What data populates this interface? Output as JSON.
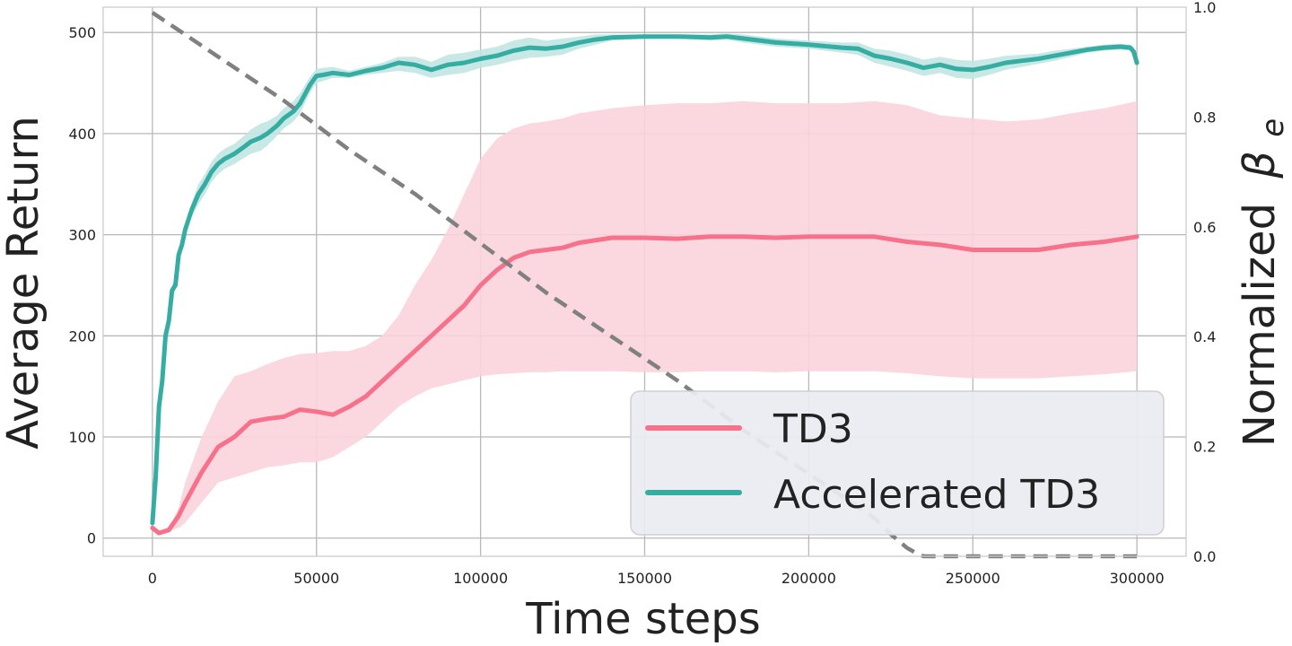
{
  "chart_data": {
    "type": "line",
    "xlabel": "Time steps",
    "ylabel": "Average Return",
    "y2label": "Normalized",
    "y2label_symbol": "β",
    "y2label_subscript": "e",
    "xlim": [
      -15000,
      315000
    ],
    "ylim": [
      -18,
      525
    ],
    "y2lim": [
      0.0,
      1.0
    ],
    "xticks": [
      0,
      50000,
      100000,
      150000,
      200000,
      250000,
      300000
    ],
    "xtick_labels": [
      "0",
      "50000",
      "100000",
      "150000",
      "200000",
      "250000",
      "300000"
    ],
    "yticks": [
      0,
      100,
      200,
      300,
      400,
      500
    ],
    "ytick_labels": [
      "0",
      "100",
      "200",
      "300",
      "400",
      "500"
    ],
    "y2ticks": [
      0.0,
      0.2,
      0.4,
      0.6,
      0.8,
      1.0
    ],
    "y2tick_labels": [
      "0.0",
      "0.2",
      "0.4",
      "0.6",
      "0.8",
      "1.0"
    ],
    "grid": true,
    "legend_position": "bottom-right",
    "series": [
      {
        "name": "TD3",
        "color": "#f7718a",
        "band_color": "#fbd3dc",
        "x": [
          0,
          2000,
          5000,
          8000,
          10000,
          15000,
          20000,
          25000,
          30000,
          35000,
          40000,
          45000,
          50000,
          55000,
          60000,
          65000,
          70000,
          75000,
          80000,
          85000,
          90000,
          95000,
          100000,
          105000,
          110000,
          115000,
          120000,
          125000,
          130000,
          140000,
          150000,
          160000,
          170000,
          180000,
          190000,
          200000,
          210000,
          220000,
          230000,
          240000,
          250000,
          260000,
          270000,
          280000,
          290000,
          300000
        ],
        "mean": [
          10,
          5,
          8,
          22,
          35,
          65,
          90,
          100,
          115,
          118,
          120,
          127,
          125,
          122,
          130,
          140,
          155,
          170,
          185,
          200,
          215,
          230,
          250,
          265,
          277,
          283,
          285,
          287,
          292,
          297,
          297,
          296,
          298,
          298,
          297,
          298,
          298,
          298,
          293,
          290,
          285,
          285,
          285,
          290,
          293,
          298
        ],
        "lower": [
          10,
          5,
          7,
          10,
          15,
          35,
          55,
          60,
          65,
          70,
          72,
          75,
          75,
          80,
          90,
          100,
          115,
          130,
          140,
          148,
          152,
          156,
          160,
          162,
          163,
          164,
          164,
          165,
          165,
          165,
          164,
          164,
          165,
          165,
          164,
          165,
          165,
          165,
          163,
          160,
          158,
          158,
          158,
          160,
          162,
          165
        ],
        "upper": [
          10,
          5,
          9,
          30,
          55,
          100,
          135,
          160,
          165,
          172,
          178,
          182,
          183,
          185,
          185,
          190,
          200,
          220,
          250,
          275,
          305,
          340,
          375,
          395,
          405,
          410,
          412,
          415,
          420,
          425,
          428,
          430,
          430,
          432,
          430,
          430,
          430,
          432,
          428,
          418,
          415,
          412,
          414,
          420,
          425,
          432
        ]
      },
      {
        "name": "Accelerated TD3",
        "color": "#35ada3",
        "band_color": "#c2e6e3",
        "x": [
          0,
          1000,
          2000,
          3000,
          4000,
          5000,
          6000,
          7000,
          8000,
          9000,
          10000,
          12000,
          14000,
          16000,
          18000,
          20000,
          22000,
          25000,
          28000,
          30000,
          33000,
          35000,
          38000,
          40000,
          43000,
          45000,
          48000,
          50000,
          52000,
          55000,
          60000,
          65000,
          70000,
          75000,
          80000,
          85000,
          90000,
          95000,
          100000,
          105000,
          110000,
          115000,
          120000,
          125000,
          130000,
          135000,
          140000,
          150000,
          160000,
          170000,
          175000,
          180000,
          190000,
          200000,
          210000,
          215000,
          220000,
          225000,
          230000,
          235000,
          240000,
          245000,
          250000,
          255000,
          260000,
          265000,
          270000,
          275000,
          280000,
          285000,
          290000,
          295000,
          298000,
          299000,
          300000
        ],
        "mean": [
          15,
          60,
          130,
          155,
          200,
          215,
          245,
          250,
          280,
          290,
          305,
          325,
          340,
          350,
          362,
          370,
          375,
          380,
          387,
          392,
          396,
          400,
          408,
          415,
          422,
          430,
          448,
          457,
          458,
          460,
          458,
          462,
          465,
          470,
          468,
          463,
          468,
          470,
          474,
          477,
          482,
          485,
          484,
          486,
          490,
          493,
          495,
          496,
          496,
          495,
          496,
          494,
          490,
          488,
          485,
          484,
          477,
          474,
          470,
          465,
          468,
          464,
          463,
          466,
          470,
          472,
          474,
          477,
          480,
          483,
          485,
          486,
          485,
          481,
          470
        ],
        "lower": [
          15,
          60,
          130,
          155,
          198,
          212,
          240,
          245,
          275,
          285,
          300,
          318,
          330,
          340,
          352,
          360,
          365,
          370,
          376,
          380,
          383,
          388,
          398,
          405,
          412,
          420,
          440,
          450,
          452,
          455,
          455,
          458,
          460,
          462,
          460,
          455,
          458,
          460,
          465,
          468,
          472,
          475,
          476,
          478,
          484,
          488,
          492,
          494,
          494,
          492,
          493,
          490,
          486,
          484,
          480,
          478,
          470,
          466,
          462,
          457,
          460,
          455,
          454,
          458,
          463,
          466,
          469,
          472,
          476,
          480,
          482,
          483,
          482,
          478,
          468
        ],
        "upper": [
          15,
          60,
          130,
          155,
          202,
          218,
          250,
          255,
          285,
          295,
          310,
          332,
          350,
          360,
          372,
          380,
          385,
          390,
          398,
          404,
          410,
          412,
          418,
          425,
          432,
          440,
          456,
          464,
          465,
          466,
          462,
          466,
          470,
          476,
          476,
          471,
          478,
          480,
          483,
          486,
          492,
          495,
          492,
          494,
          496,
          498,
          498,
          498,
          498,
          498,
          499,
          498,
          494,
          492,
          490,
          490,
          484,
          482,
          478,
          473,
          476,
          473,
          472,
          474,
          477,
          478,
          479,
          482,
          484,
          486,
          488,
          489,
          488,
          484,
          472
        ]
      },
      {
        "name": "",
        "axis": "y2",
        "color": "#808080",
        "dashed": true,
        "x": [
          0,
          20000,
          40000,
          60000,
          80000,
          100000,
          120000,
          140000,
          160000,
          180000,
          200000,
          210000,
          220000,
          225000,
          230000,
          233000,
          235000,
          240000,
          260000,
          280000,
          300000
        ],
        "values": [
          0.99,
          0.91,
          0.83,
          0.74,
          0.66,
          0.57,
          0.48,
          0.4,
          0.32,
          0.23,
          0.15,
          0.11,
          0.07,
          0.04,
          0.015,
          0.005,
          0.0,
          0.0,
          0.0,
          0.0,
          0.0
        ]
      }
    ]
  }
}
